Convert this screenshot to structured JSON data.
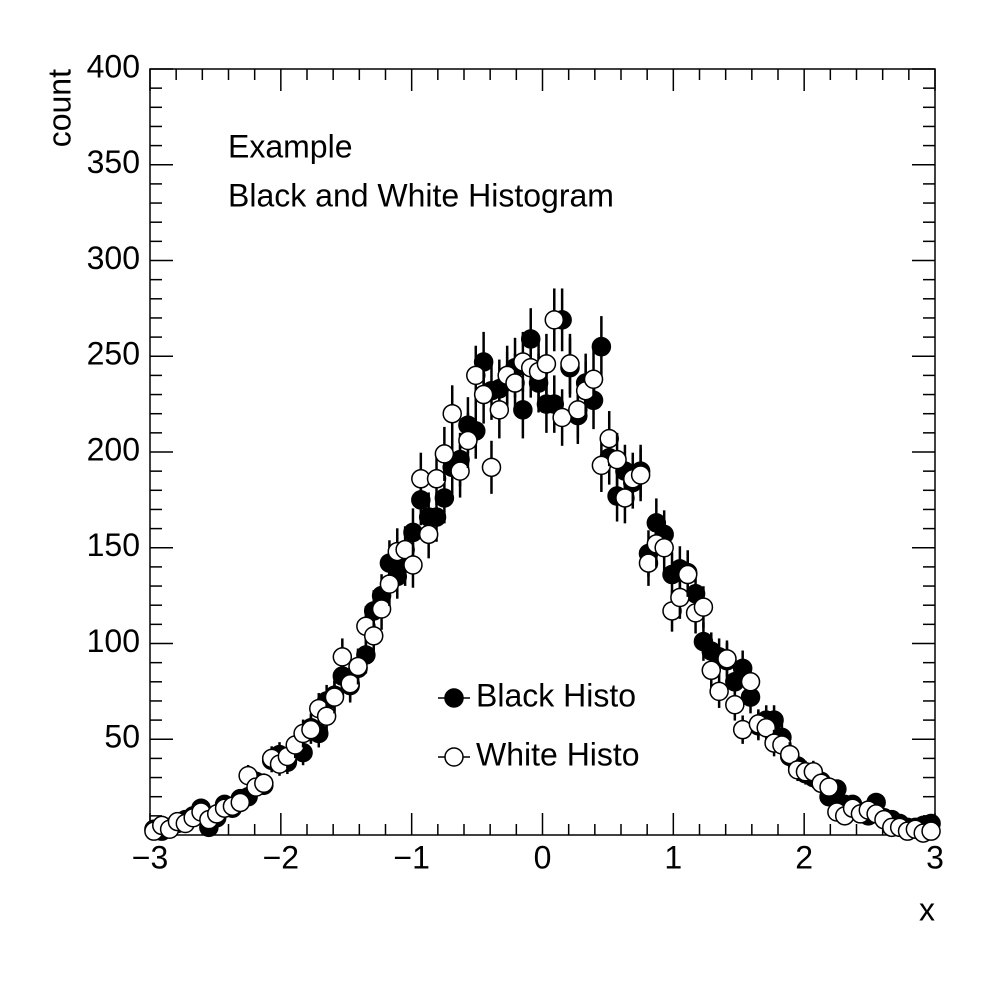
{
  "chart_data": {
    "type": "scatter",
    "annotations": [
      "Example",
      "Black and White Histogram"
    ],
    "x_label": "x",
    "y_label": "count",
    "x": [
      -2.97,
      -2.91,
      -2.85,
      -2.79,
      -2.73,
      -2.67,
      -2.61,
      -2.55,
      -2.49,
      -2.43,
      -2.37,
      -2.31,
      -2.25,
      -2.19,
      -2.13,
      -2.07,
      -2.01,
      -1.95,
      -1.89,
      -1.83,
      -1.77,
      -1.71,
      -1.65,
      -1.59,
      -1.53,
      -1.47,
      -1.41,
      -1.35,
      -1.29,
      -1.23,
      -1.17,
      -1.11,
      -1.05,
      -0.99,
      -0.93,
      -0.87,
      -0.81,
      -0.75,
      -0.69,
      -0.63,
      -0.57,
      -0.51,
      -0.45,
      -0.39,
      -0.33,
      -0.27,
      -0.21,
      -0.15,
      -0.09,
      -0.03,
      0.03,
      0.09,
      0.15,
      0.21,
      0.27,
      0.33,
      0.39,
      0.45,
      0.51,
      0.57,
      0.63,
      0.69,
      0.75,
      0.81,
      0.87,
      0.93,
      0.99,
      1.05,
      1.11,
      1.17,
      1.23,
      1.29,
      1.35,
      1.41,
      1.47,
      1.53,
      1.59,
      1.65,
      1.71,
      1.77,
      1.83,
      1.89,
      1.95,
      2.01,
      2.07,
      2.13,
      2.19,
      2.25,
      2.31,
      2.37,
      2.43,
      2.49,
      2.55,
      2.61,
      2.67,
      2.73,
      2.79,
      2.85,
      2.91,
      2.97
    ],
    "series": [
      {
        "name": "Black Histo",
        "color": "#000000",
        "marker": "filled",
        "values": [
          3,
          2,
          4,
          6,
          8,
          10,
          14,
          4,
          9,
          16,
          14,
          19,
          20,
          28,
          26,
          39,
          42,
          38,
          44,
          43,
          56,
          53,
          70,
          73,
          83,
          78,
          87,
          94,
          117,
          125,
          142,
          135,
          142,
          158,
          175,
          166,
          166,
          176,
          192,
          196,
          214,
          211,
          247,
          232,
          233,
          237,
          244,
          222,
          259,
          236,
          225,
          225,
          269,
          244,
          219,
          236,
          227,
          255,
          197,
          177,
          190,
          184,
          190,
          147,
          163,
          157,
          136,
          139,
          137,
          126,
          101,
          96,
          93,
          91,
          80,
          87,
          72,
          57,
          60,
          60,
          51,
          41,
          36,
          32,
          30,
          28,
          20,
          24,
          16,
          16,
          12,
          10,
          17,
          9,
          8,
          6,
          4,
          4,
          5,
          6
        ]
      },
      {
        "name": "White Histo",
        "color": "#000000",
        "marker": "open",
        "values": [
          2,
          5,
          3,
          7,
          6,
          9,
          12,
          8,
          11,
          14,
          15,
          17,
          31,
          25,
          27,
          40,
          37,
          41,
          47,
          53,
          55,
          66,
          62,
          72,
          93,
          79,
          88,
          109,
          104,
          118,
          131,
          148,
          149,
          141,
          186,
          157,
          186,
          199,
          220,
          190,
          206,
          240,
          230,
          192,
          222,
          240,
          236,
          247,
          244,
          242,
          246,
          269,
          218,
          246,
          222,
          232,
          238,
          193,
          207,
          196,
          176,
          186,
          188,
          142,
          152,
          150,
          117,
          124,
          136,
          116,
          119,
          86,
          75,
          92,
          68,
          55,
          80,
          58,
          56,
          48,
          47,
          42,
          34,
          33,
          33,
          27,
          25,
          12,
          10,
          14,
          11,
          13,
          11,
          8,
          4,
          4,
          2,
          3,
          1,
          2
        ]
      }
    ],
    "xlim": [
      -3,
      3
    ],
    "xticks": [
      {
        "value": -3,
        "label": "−3"
      },
      {
        "value": -2,
        "label": "−2"
      },
      {
        "value": -1,
        "label": "−1"
      },
      0,
      1,
      2,
      3
    ],
    "ylim": [
      0,
      400
    ],
    "yticks": [
      50,
      100,
      150,
      200,
      250,
      300,
      350,
      400
    ]
  }
}
